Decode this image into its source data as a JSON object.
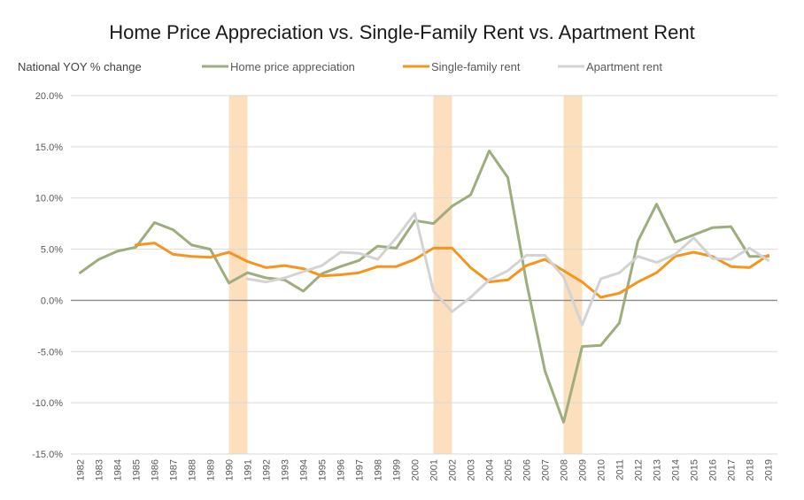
{
  "chart_data": {
    "type": "line",
    "title": "Home Price Appreciation vs. Single-Family Rent vs. Apartment Rent",
    "ylabel": "National YOY % change",
    "ylim": [
      -15,
      20
    ],
    "y_ticks": [
      20,
      15,
      10,
      5,
      0,
      -5,
      -10,
      -15
    ],
    "y_tick_labels": [
      "20.0%",
      "15.0%",
      "10.0%",
      "5.0%",
      "0.0%",
      "-5.0%",
      "-10.0%",
      "-15.0%"
    ],
    "categories": [
      "1982",
      "1983",
      "1984",
      "1985",
      "1986",
      "1987",
      "1988",
      "1989",
      "1990",
      "1991",
      "1992",
      "1993",
      "1994",
      "1995",
      "1996",
      "1997",
      "1998",
      "1999",
      "2000",
      "2001",
      "2002",
      "2003",
      "2004",
      "2005",
      "2006",
      "2007",
      "2008",
      "2009",
      "2010",
      "2011",
      "2012",
      "2013",
      "2014",
      "2015",
      "2016",
      "2017",
      "2018",
      "2019"
    ],
    "recession_bands": [
      [
        "1990",
        "1991"
      ],
      [
        "2001",
        "2002"
      ],
      [
        "2008",
        "2009"
      ]
    ],
    "legend_position": "top",
    "grid": true,
    "series": [
      {
        "name": "Home price appreciation",
        "color": "#9DAD7D",
        "values": [
          2.7,
          4.0,
          4.8,
          5.2,
          7.6,
          6.9,
          5.4,
          5.0,
          1.7,
          2.7,
          2.2,
          2.0,
          0.9,
          2.6,
          3.3,
          3.9,
          5.3,
          5.1,
          7.8,
          7.5,
          9.2,
          10.3,
          14.6,
          12.0,
          1.8,
          -6.9,
          -11.9,
          -4.5,
          -4.4,
          -2.2,
          5.8,
          9.4,
          5.7,
          6.4,
          7.1,
          7.2,
          4.3,
          4.3
        ]
      },
      {
        "name": "Single-family rent",
        "color": "#F7941D",
        "values": [
          null,
          null,
          null,
          5.4,
          5.6,
          4.5,
          4.3,
          4.2,
          4.7,
          3.8,
          3.2,
          3.4,
          3.1,
          2.4,
          2.5,
          2.7,
          3.3,
          3.3,
          4.0,
          5.1,
          5.1,
          3.2,
          1.8,
          2.0,
          3.4,
          4.0,
          2.9,
          1.8,
          0.3,
          0.7,
          1.8,
          2.7,
          4.3,
          4.7,
          4.3,
          3.3,
          3.2,
          4.4
        ]
      },
      {
        "name": "Apartment rent",
        "color": "#D3D3D3",
        "values": [
          null,
          null,
          null,
          null,
          null,
          null,
          null,
          null,
          null,
          2.1,
          1.8,
          2.2,
          2.8,
          3.4,
          4.7,
          4.6,
          4.0,
          6.1,
          8.5,
          0.9,
          -1.1,
          0.3,
          2.0,
          2.9,
          4.4,
          4.4,
          2.3,
          -2.4,
          2.1,
          2.7,
          4.3,
          3.7,
          4.5,
          6.1,
          4.1,
          4.0,
          5.1,
          3.9
        ]
      }
    ]
  }
}
